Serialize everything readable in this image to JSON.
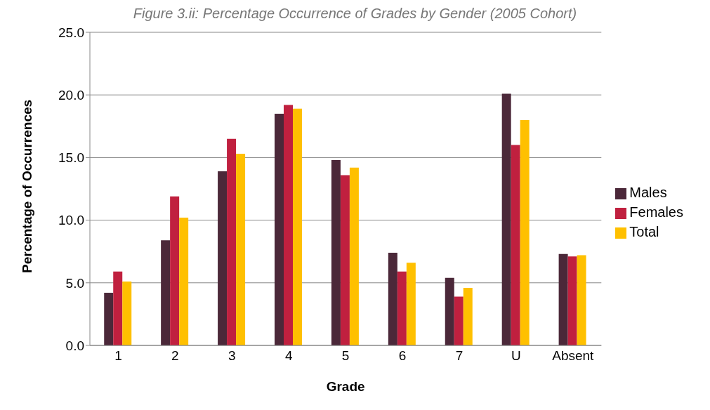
{
  "chart_data": {
    "type": "bar",
    "title": "Figure 3.ii: Percentage Occurrence of Grades by Gender (2005 Cohort)",
    "xlabel": "Grade",
    "ylabel": "Percentage of Occurrences",
    "categories": [
      "1",
      "2",
      "3",
      "4",
      "5",
      "6",
      "7",
      "U",
      "Absent"
    ],
    "series": [
      {
        "name": "Males",
        "color": "#4b2839",
        "values": [
          4.2,
          8.4,
          13.9,
          18.5,
          14.8,
          7.4,
          5.4,
          20.1,
          7.3
        ]
      },
      {
        "name": "Females",
        "color": "#c0203f",
        "values": [
          5.9,
          11.9,
          16.5,
          19.2,
          13.6,
          5.9,
          3.9,
          16.0,
          7.1
        ]
      },
      {
        "name": "Total",
        "color": "#ffc000",
        "values": [
          5.1,
          10.2,
          15.3,
          18.9,
          14.2,
          6.6,
          4.6,
          18.0,
          7.2
        ]
      }
    ],
    "ylim": [
      0,
      25
    ],
    "yticks": [
      {
        "value": 0,
        "label": "0.0"
      },
      {
        "value": 5,
        "label": "5.0"
      },
      {
        "value": 10,
        "label": "10.0"
      },
      {
        "value": 15,
        "label": "15.0"
      },
      {
        "value": 20,
        "label": "20.0"
      },
      {
        "value": 25,
        "label": "25.0"
      }
    ],
    "grid": "y",
    "legend": "right"
  }
}
